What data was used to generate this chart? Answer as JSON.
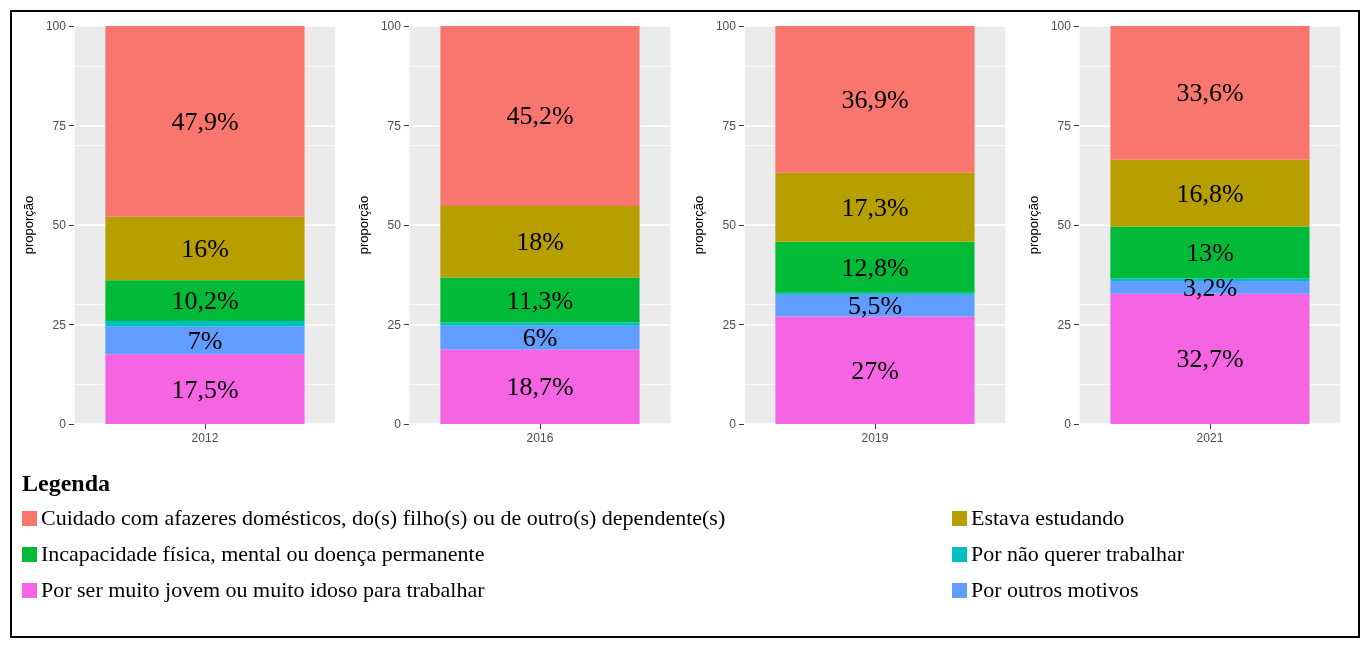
{
  "chart_data": [
    {
      "type": "bar",
      "stacked": true,
      "categories": [
        "2012"
      ],
      "ylabel": "proporção",
      "ylim": [
        0,
        100
      ],
      "yticks": [
        0,
        25,
        50,
        75,
        100
      ],
      "grid": true,
      "legend": "bottom",
      "legend_title": "Legenda",
      "series": [
        {
          "name": "Por ser muito jovem ou muito idoso para trabalhar",
          "color": "#f564e3",
          "values": [
            17.5
          ],
          "value_labels": [
            "17,5%"
          ]
        },
        {
          "name": "Por outros motivos",
          "color": "#619cff",
          "values": [
            7
          ],
          "value_labels": [
            "7%"
          ]
        },
        {
          "name": "Por não querer trabalhar",
          "color": "#00bfc4",
          "values": [
            1.4
          ],
          "value_labels": [
            null
          ]
        },
        {
          "name": "Incapacidade física, mental ou doença permanente",
          "color": "#00ba38",
          "values": [
            10.2
          ],
          "value_labels": [
            "10,2%"
          ]
        },
        {
          "name": "Estava estudando",
          "color": "#b79f00",
          "values": [
            16
          ],
          "value_labels": [
            "16%"
          ]
        },
        {
          "name": "Cuidado com afazeres domésticos, do(s) filho(s) ou de outro(s) dependente(s)",
          "color": "#f8766d",
          "values": [
            47.9
          ],
          "value_labels": [
            "47,9%"
          ]
        }
      ]
    },
    {
      "type": "bar",
      "stacked": true,
      "categories": [
        "2016"
      ],
      "ylabel": "proporção",
      "ylim": [
        0,
        100
      ],
      "yticks": [
        0,
        25,
        50,
        75,
        100
      ],
      "grid": true,
      "series": [
        {
          "color": "#f564e3",
          "values": [
            18.7
          ],
          "value_labels": [
            "18,7%"
          ]
        },
        {
          "color": "#619cff",
          "values": [
            6
          ],
          "value_labels": [
            "6%"
          ]
        },
        {
          "color": "#00bfc4",
          "values": [
            0.8
          ],
          "value_labels": [
            null
          ]
        },
        {
          "color": "#00ba38",
          "values": [
            11.3
          ],
          "value_labels": [
            "11,3%"
          ]
        },
        {
          "color": "#b79f00",
          "values": [
            18
          ],
          "value_labels": [
            "18%"
          ]
        },
        {
          "color": "#f8766d",
          "values": [
            45.2
          ],
          "value_labels": [
            "45,2%"
          ]
        }
      ]
    },
    {
      "type": "bar",
      "stacked": true,
      "categories": [
        "2019"
      ],
      "ylabel": "proporção",
      "ylim": [
        0,
        100
      ],
      "yticks": [
        0,
        25,
        50,
        75,
        100
      ],
      "grid": true,
      "series": [
        {
          "color": "#f564e3",
          "values": [
            27
          ],
          "value_labels": [
            "27%"
          ]
        },
        {
          "color": "#619cff",
          "values": [
            5.5
          ],
          "value_labels": [
            "5,5%"
          ]
        },
        {
          "color": "#00bfc4",
          "values": [
            0.5
          ],
          "value_labels": [
            null
          ]
        },
        {
          "color": "#00ba38",
          "values": [
            12.8
          ],
          "value_labels": [
            "12,8%"
          ]
        },
        {
          "color": "#b79f00",
          "values": [
            17.3
          ],
          "value_labels": [
            "17,3%"
          ]
        },
        {
          "color": "#f8766d",
          "values": [
            36.9
          ],
          "value_labels": [
            "36,9%"
          ]
        }
      ]
    },
    {
      "type": "bar",
      "stacked": true,
      "categories": [
        "2021"
      ],
      "ylabel": "proporção",
      "ylim": [
        0,
        100
      ],
      "yticks": [
        0,
        25,
        50,
        75,
        100
      ],
      "grid": true,
      "series": [
        {
          "color": "#f564e3",
          "values": [
            32.7
          ],
          "value_labels": [
            "32,7%"
          ]
        },
        {
          "color": "#619cff",
          "values": [
            3.2
          ],
          "value_labels": [
            "3,2%"
          ]
        },
        {
          "color": "#00bfc4",
          "values": [
            0.7
          ],
          "value_labels": [
            null
          ]
        },
        {
          "color": "#00ba38",
          "values": [
            13
          ],
          "value_labels": [
            "13%"
          ]
        },
        {
          "color": "#b79f00",
          "values": [
            16.8
          ],
          "value_labels": [
            "16,8%"
          ]
        },
        {
          "color": "#f8766d",
          "values": [
            33.6
          ],
          "value_labels": [
            "33,6%"
          ]
        }
      ]
    }
  ]
}
